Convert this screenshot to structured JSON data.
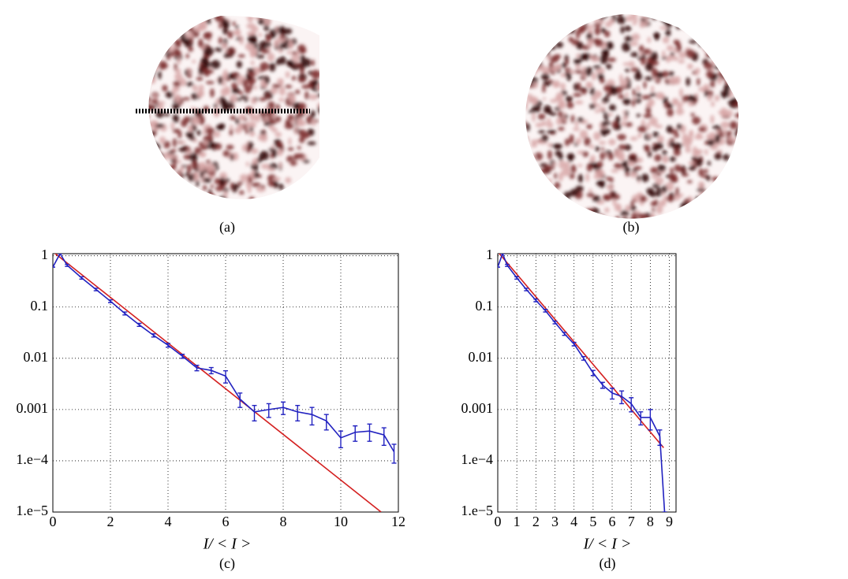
{
  "images": [
    {
      "caption": "(a)"
    },
    {
      "caption": "(b)"
    }
  ],
  "chart_data": [
    {
      "type": "line",
      "caption": "(c)",
      "x_label": "I/ < I >",
      "log_y": true,
      "grid": true,
      "xlim": [
        0,
        12
      ],
      "xticks": [
        0,
        2,
        4,
        6,
        8,
        10,
        12
      ],
      "ylim": [
        1e-05,
        1.1
      ],
      "yticks": [
        1,
        0.1,
        0.01,
        0.001,
        {
          "value": 0.0001,
          "label": "1.e−4"
        },
        {
          "value": 1e-05,
          "label": "1.e−5"
        }
      ],
      "series": [
        {
          "color": "#2222c0",
          "x": [
            0,
            0.25,
            0.5,
            1,
            1.5,
            2,
            2.5,
            3,
            3.5,
            4,
            4.5,
            5,
            5.5,
            6,
            6.5,
            7,
            7.5,
            8,
            8.5,
            9,
            9.5,
            10,
            10.5,
            11,
            11.5,
            11.85
          ],
          "values": [
            0.6,
            1.1,
            0.65,
            0.37,
            0.22,
            0.13,
            0.075,
            0.045,
            0.028,
            0.018,
            0.011,
            0.0065,
            0.0058,
            0.0045,
            0.0016,
            0.0009,
            0.001,
            0.0011,
            0.0009,
            0.0008,
            0.0006,
            0.00028,
            0.00036,
            0.00038,
            0.00032,
            0.00015
          ],
          "errors": [
            0,
            0,
            0.03,
            0.02,
            0.012,
            0.008,
            0.005,
            0.003,
            0.002,
            0.0015,
            0.001,
            0.0008,
            0.0008,
            0.0012,
            0.0005,
            0.0003,
            0.0003,
            0.0003,
            0.0003,
            0.0003,
            0.0002,
            0.0001,
            0.00012,
            0.00014,
            0.00012,
            6e-05
          ]
        },
        {
          "color": "#d42020",
          "x": [
            0,
            11.4
          ],
          "values": [
            1.2,
            1e-05
          ]
        }
      ]
    },
    {
      "type": "line",
      "caption": "(d)",
      "x_label": "I/ < I >",
      "log_y": true,
      "grid": true,
      "xlim": [
        0,
        9.35
      ],
      "xticks": [
        0,
        1,
        2,
        3,
        4,
        5,
        6,
        7,
        8,
        9
      ],
      "ylim": [
        1e-05,
        1.1
      ],
      "yticks": [
        1,
        0.1,
        0.01,
        0.001,
        {
          "value": 0.0001,
          "label": "1.e−4"
        },
        {
          "value": 1e-05,
          "label": "1.e−5"
        }
      ],
      "series": [
        {
          "color": "#2222c0",
          "x": [
            0,
            0.25,
            0.5,
            1,
            1.5,
            2,
            2.5,
            3,
            3.5,
            4,
            4.5,
            5,
            5.5,
            6,
            6.5,
            7,
            7.5,
            8,
            8.5,
            8.75
          ],
          "values": [
            0.6,
            1.1,
            0.65,
            0.37,
            0.22,
            0.135,
            0.085,
            0.05,
            0.03,
            0.019,
            0.01,
            0.0052,
            0.003,
            0.0021,
            0.0018,
            0.0013,
            0.0007,
            0.0007,
            0.0003,
            1e-05
          ],
          "errors": [
            0,
            0,
            0.03,
            0.02,
            0.012,
            0.008,
            0.005,
            0.003,
            0.002,
            0.0015,
            0.0008,
            0.0006,
            0.0004,
            0.0005,
            0.0005,
            0.0004,
            0.0002,
            0.0003,
            0.0001,
            0
          ]
        },
        {
          "color": "#d42020",
          "x": [
            0,
            8.7
          ],
          "values": [
            1.2,
            0.00018
          ]
        }
      ]
    }
  ]
}
